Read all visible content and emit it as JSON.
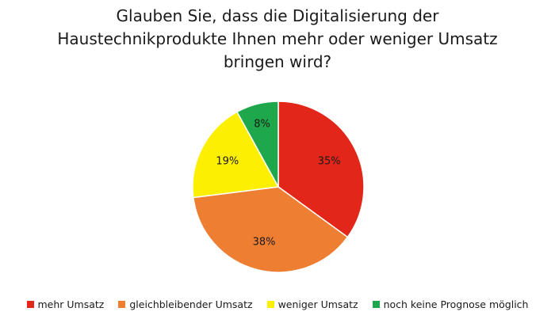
{
  "chart_data": {
    "type": "pie",
    "title_lines": [
      "Glauben Sie, dass die Digitalisierung der",
      "Haustechnikprodukte Ihnen mehr oder weniger Umsatz",
      "bringen wird?"
    ],
    "slices": [
      {
        "name": "mehr Umsatz",
        "value": 35,
        "label": "35%",
        "color": "#e3261a"
      },
      {
        "name": "gleichbleibender Umsatz",
        "value": 38,
        "label": "38%",
        "color": "#ee7e32"
      },
      {
        "name": "weniger Umsatz",
        "value": 19,
        "label": "19%",
        "color": "#fdef00"
      },
      {
        "name": "noch keine Prognose möglich",
        "value": 8,
        "label": "8%",
        "color": "#1ea84b"
      }
    ],
    "legend_position": "bottom",
    "start_angle": "top, clockwise"
  }
}
